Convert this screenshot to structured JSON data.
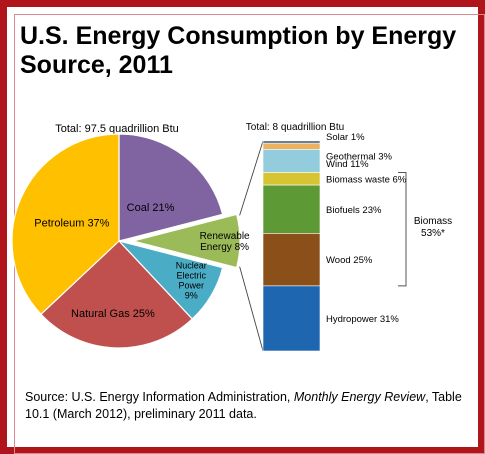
{
  "colors": {
    "frame": "#b0151b",
    "coal": "#8064a2",
    "petroleum": "#ffc000",
    "natural_gas": "#c0504d",
    "nuclear": "#4bacc6",
    "renewable": "#9bbb59",
    "solar": "#1f497d",
    "geothermal": "#eeb15e",
    "wind": "#93cddd",
    "biomass_waste": "#d6c433",
    "biofuels": "#5d9a35",
    "wood": "#8b4f1a",
    "hydropower": "#1f66b0"
  },
  "title": "U.S. Energy Consumption by Energy Source, 2011",
  "source": {
    "prefix": "Source: U.S. Energy Information Administration, ",
    "italic": "Monthly Energy Review",
    "suffix": ", Table 10.1 (March 2012), preliminary 2011 data."
  },
  "chart_data": [
    {
      "type": "pie",
      "total_label": "Total:  97.5 quadrillion Btu",
      "slices": [
        {
          "key": "coal",
          "label": "Coal 21%",
          "value": 21
        },
        {
          "key": "renewable",
          "label": "Renewable Energy 8%",
          "label_lines": [
            "Renewable",
            "Energy 8%"
          ],
          "value": 8,
          "exploded": true
        },
        {
          "key": "nuclear",
          "label": "Nuclear Electric Power 9%",
          "label_lines": [
            "Nuclear",
            "Electric",
            "Power",
            "9%"
          ],
          "value": 9
        },
        {
          "key": "natural_gas",
          "label": "Natural Gas  25%",
          "value": 25
        },
        {
          "key": "petroleum",
          "label": "Petroleum 37%",
          "value": 37
        }
      ]
    },
    {
      "type": "bar",
      "stacked": true,
      "total_label": "Total:  8 quadrillion Btu",
      "segments": [
        {
          "key": "solar",
          "label": "Solar  1%",
          "value": 1
        },
        {
          "key": "geothermal",
          "label": "Geothermal  3%",
          "value": 3
        },
        {
          "key": "wind",
          "label": "Wind  11%",
          "value": 11
        },
        {
          "key": "biomass_waste",
          "label": "Biomass waste 6%",
          "value": 6
        },
        {
          "key": "biofuels",
          "label": "Biofuels  23%",
          "value": 23
        },
        {
          "key": "wood",
          "label": "Wood 25%",
          "value": 25
        },
        {
          "key": "hydropower",
          "label": "Hydropower 31%",
          "value": 31
        }
      ],
      "bracket": {
        "label_lines": [
          "Biomass",
          "53%*"
        ],
        "label": "Biomass 53%*"
      }
    }
  ]
}
